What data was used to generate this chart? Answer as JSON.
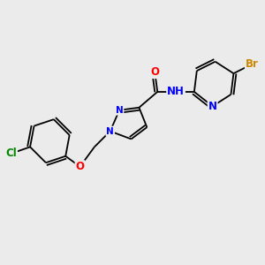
{
  "background_color": "#ebebeb",
  "atom_colors": {
    "O": "#ff0000",
    "N": "#0000ff",
    "Br": "#cc8800",
    "Cl": "#008800",
    "C": "#000000",
    "H": "#000000"
  },
  "bond_color": "#000000",
  "font_size": 8.5,
  "fig_width": 3.0,
  "fig_height": 3.0,
  "dpi": 100,
  "lw": 1.3,
  "double_sep": 0.1,
  "xlim": [
    0,
    10
  ],
  "ylim": [
    0,
    10
  ]
}
